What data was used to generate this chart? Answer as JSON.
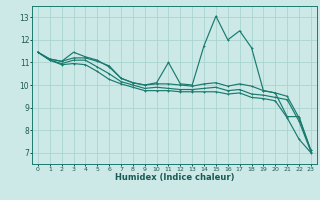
{
  "xlabel": "Humidex (Indice chaleur)",
  "ylabel": "",
  "xlim": [
    -0.5,
    23.5
  ],
  "ylim": [
    6.5,
    13.5
  ],
  "xticks": [
    0,
    1,
    2,
    3,
    4,
    5,
    6,
    7,
    8,
    9,
    10,
    11,
    12,
    13,
    14,
    15,
    16,
    17,
    18,
    19,
    20,
    21,
    22,
    23
  ],
  "yticks": [
    7,
    8,
    9,
    10,
    11,
    12,
    13
  ],
  "bg_color": "#cce9e7",
  "grid_color": "#aad4d1",
  "line_color": "#1a7a6e",
  "series": [
    [
      11.45,
      11.15,
      11.05,
      11.45,
      11.25,
      11.1,
      10.8,
      10.3,
      10.1,
      10.0,
      10.1,
      11.0,
      10.05,
      10.0,
      11.75,
      13.05,
      12.0,
      12.4,
      11.65,
      9.75,
      9.65,
      8.6,
      8.6,
      7.1
    ],
    [
      11.45,
      11.15,
      11.05,
      11.2,
      11.2,
      11.05,
      10.85,
      10.3,
      10.1,
      10.0,
      10.05,
      10.05,
      10.0,
      9.95,
      10.05,
      10.1,
      9.95,
      10.05,
      9.95,
      9.75,
      9.65,
      9.5,
      8.55,
      7.1
    ],
    [
      11.45,
      11.1,
      10.95,
      11.1,
      11.1,
      10.8,
      10.5,
      10.15,
      10.0,
      9.85,
      9.9,
      9.85,
      9.8,
      9.8,
      9.85,
      9.9,
      9.75,
      9.8,
      9.6,
      9.55,
      9.45,
      9.35,
      8.4,
      7.05
    ],
    [
      11.45,
      11.1,
      10.9,
      10.95,
      10.9,
      10.6,
      10.25,
      10.05,
      9.9,
      9.75,
      9.75,
      9.75,
      9.7,
      9.7,
      9.7,
      9.7,
      9.6,
      9.65,
      9.45,
      9.4,
      9.3,
      8.55,
      7.6,
      7.0
    ]
  ]
}
